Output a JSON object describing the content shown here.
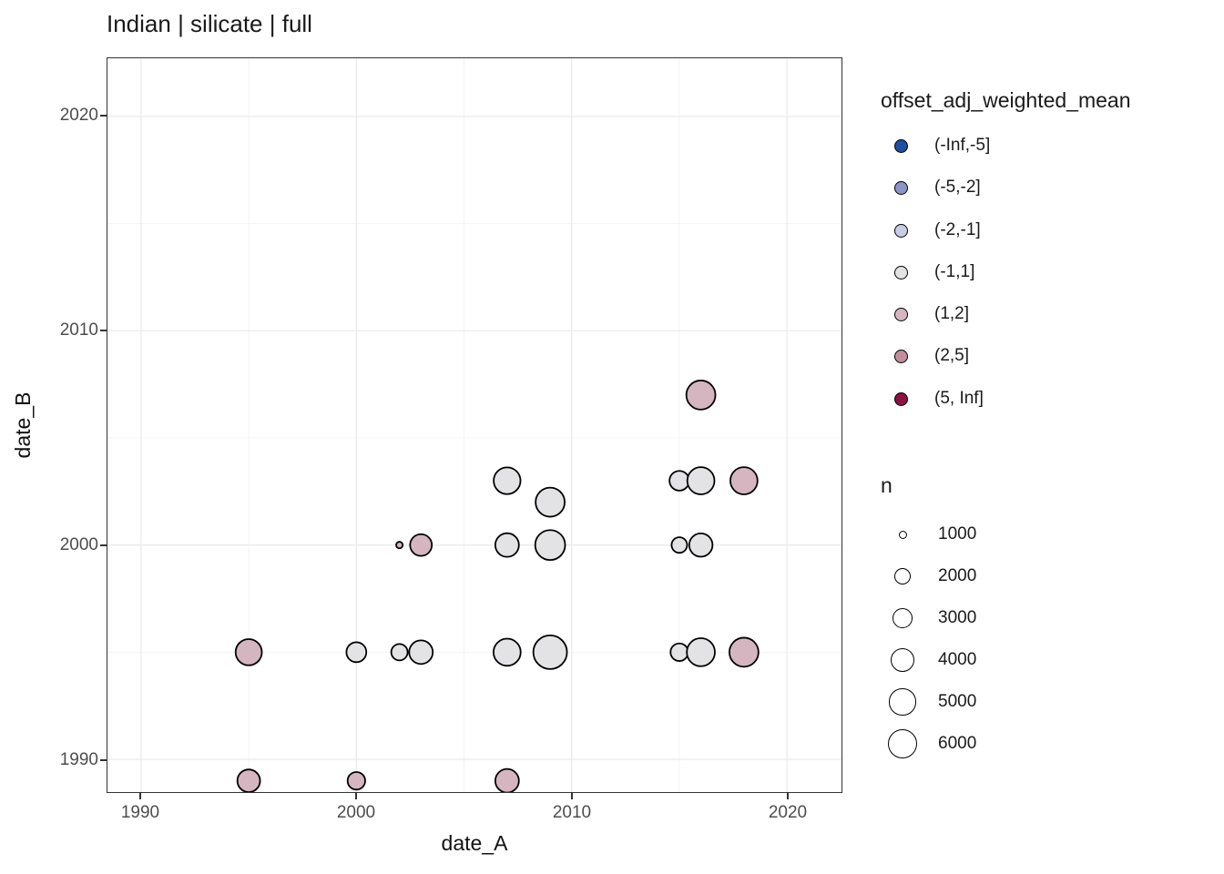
{
  "figure": {
    "title": "Indian | silicate | full",
    "x_axis": {
      "label": "date_A",
      "tick_labels": [
        "1990",
        "2000",
        "2010",
        "2020"
      ]
    },
    "y_axis": {
      "label": "date_B",
      "tick_labels": [
        "1990",
        "2000",
        "2010",
        "2020"
      ]
    }
  },
  "chart_data": {
    "type": "scatter",
    "subtype": "bubble",
    "title": "Indian | silicate | full",
    "xlabel": "date_A",
    "ylabel": "date_B",
    "xlim": [
      1988.4,
      2022.5
    ],
    "ylim": [
      1988.4,
      2022.7
    ],
    "x_major_ticks": [
      1990,
      2000,
      2010,
      2020
    ],
    "x_minor_ticks": [
      1995,
      2005,
      2015
    ],
    "y_major_ticks": [
      1990,
      2000,
      2010,
      2020
    ],
    "y_minor_ticks": [
      1995,
      2005,
      2015
    ],
    "grid": true,
    "legend_position": "right",
    "colors": {
      "grid_major": "#EBEBEB",
      "grid_minor": "#F3F3F3",
      "point_stroke": "#000000",
      "panel_border": "#333333"
    },
    "color_legend": {
      "title": "offset_adj_weighted_mean",
      "entries": [
        {
          "label": "(-Inf,-5]",
          "color": "#1E4E9F"
        },
        {
          "label": "(-5,-2]",
          "color": "#8D94C6"
        },
        {
          "label": "(-2,-1]",
          "color": "#C9CCE3"
        },
        {
          "label": "(-1,1]",
          "color": "#E3E2E4"
        },
        {
          "label": "(1,2]",
          "color": "#D5B5C0"
        },
        {
          "label": "(2,5]",
          "color": "#C38D9B"
        },
        {
          "label": "(5, Inf]",
          "color": "#8B1242"
        }
      ]
    },
    "size_legend": {
      "title": "n",
      "entries": [
        {
          "label": "1000",
          "n": 1000
        },
        {
          "label": "2000",
          "n": 2000
        },
        {
          "label": "3000",
          "n": 3000
        },
        {
          "label": "4000",
          "n": 4000
        },
        {
          "label": "5000",
          "n": 5000
        },
        {
          "label": "6000",
          "n": 6000
        }
      ]
    },
    "points": [
      {
        "x": 1995,
        "y": 1995,
        "n": 4900,
        "bin": "(1,2]"
      },
      {
        "x": 2000,
        "y": 1995,
        "n": 2850,
        "bin": "(-1,1]"
      },
      {
        "x": 2002,
        "y": 1995,
        "n": 2000,
        "bin": "(-1,1]"
      },
      {
        "x": 2003,
        "y": 1995,
        "n": 4000,
        "bin": "(-1,1]"
      },
      {
        "x": 2007,
        "y": 1995,
        "n": 5250,
        "bin": "(-1,1]"
      },
      {
        "x": 2009,
        "y": 1995,
        "n": 7800,
        "bin": "(-1,1]"
      },
      {
        "x": 2015,
        "y": 1995,
        "n": 2300,
        "bin": "(-1,1]"
      },
      {
        "x": 2016,
        "y": 1995,
        "n": 5600,
        "bin": "(-1,1]"
      },
      {
        "x": 2018,
        "y": 1995,
        "n": 6000,
        "bin": "(1,2]"
      },
      {
        "x": 1995,
        "y": 1989,
        "n": 3700,
        "bin": "(1,2]"
      },
      {
        "x": 2000,
        "y": 1989,
        "n": 2300,
        "bin": "(1,2]"
      },
      {
        "x": 2007,
        "y": 1989,
        "n": 4000,
        "bin": "(1,2]"
      },
      {
        "x": 2002,
        "y": 2000,
        "n": 800,
        "bin": "(1,2]"
      },
      {
        "x": 2003,
        "y": 2000,
        "n": 3400,
        "bin": "(1,2]"
      },
      {
        "x": 2007,
        "y": 2000,
        "n": 4000,
        "bin": "(-1,1]"
      },
      {
        "x": 2009,
        "y": 2000,
        "n": 6350,
        "bin": "(-1,1]"
      },
      {
        "x": 2015,
        "y": 2000,
        "n": 1900,
        "bin": "(-1,1]"
      },
      {
        "x": 2016,
        "y": 2000,
        "n": 3900,
        "bin": "(-1,1]"
      },
      {
        "x": 2007,
        "y": 2003,
        "n": 5100,
        "bin": "(-1,1]"
      },
      {
        "x": 2009,
        "y": 2002,
        "n": 6000,
        "bin": "(-1,1]"
      },
      {
        "x": 2015,
        "y": 2003,
        "n": 2800,
        "bin": "(-1,1]"
      },
      {
        "x": 2016,
        "y": 2003,
        "n": 5250,
        "bin": "(-1,1]"
      },
      {
        "x": 2018,
        "y": 2003,
        "n": 5250,
        "bin": "(1,2]"
      },
      {
        "x": 2016,
        "y": 2007,
        "n": 6000,
        "bin": "(1,2]"
      }
    ]
  }
}
